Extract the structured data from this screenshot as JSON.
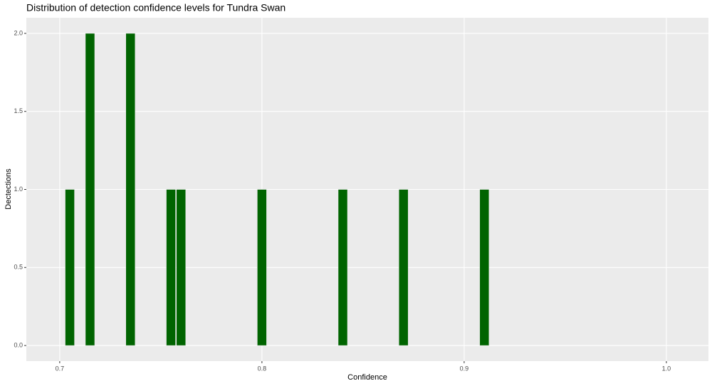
{
  "chart_data": {
    "type": "bar",
    "title": "Distribution of detection confidence levels for Tundra Swan",
    "x_label": "Confidence",
    "y_label": "Dectections",
    "x": [
      0.705,
      0.715,
      0.735,
      0.755,
      0.76,
      0.8,
      0.84,
      0.87,
      0.91
    ],
    "values": [
      1,
      2,
      2,
      1,
      1,
      1,
      1,
      1,
      1
    ],
    "color": "#006400",
    "xlim": [
      0.6835,
      1.0208
    ],
    "xticks": [
      0.7,
      0.8,
      0.9,
      {
        "value": 1,
        "label": "1.0"
      }
    ],
    "ylim": [
      -0.1,
      2.1
    ],
    "yticks": [
      {
        "value": 0,
        "label": "0.0"
      },
      0.5,
      {
        "value": 1,
        "label": "1.0"
      },
      1.5,
      {
        "value": 2,
        "label": "2.0"
      }
    ],
    "grid": true
  }
}
